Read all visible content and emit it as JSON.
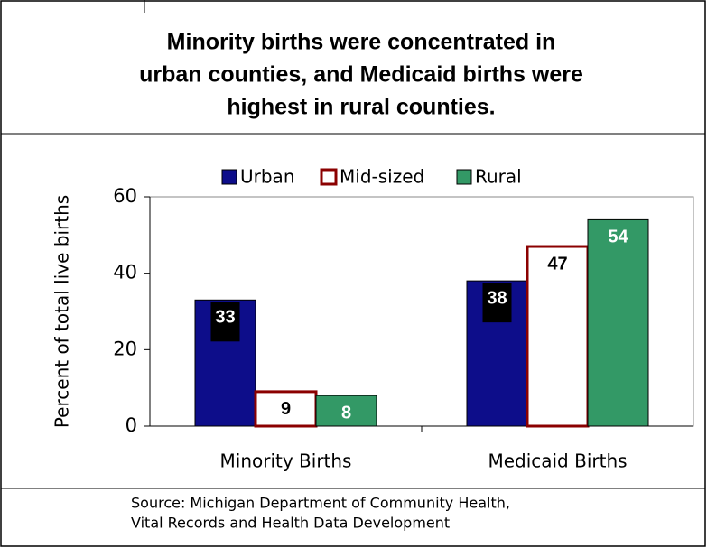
{
  "chart_data": {
    "type": "bar",
    "title": [
      "Minority births were concentrated in",
      "urban counties, and Medicaid births were",
      "highest in rural counties."
    ],
    "y_label": "Percent of total live births",
    "categories": [
      "Minority Births",
      "Medicaid Births"
    ],
    "series": [
      {
        "name": "Urban",
        "color": "#0d0d8a",
        "values": [
          33,
          38
        ]
      },
      {
        "name": "Mid-sized",
        "color": "#ffffff",
        "values": [
          9,
          47
        ]
      },
      {
        "name": "Rural",
        "color": "#339966",
        "values": [
          8,
          54
        ]
      }
    ],
    "ylim": [
      0,
      60
    ],
    "yticks": [
      0,
      20,
      40,
      60
    ],
    "source": [
      "Source: Michigan Department of Community Health,",
      "Vital Records and Health Data Development"
    ]
  }
}
